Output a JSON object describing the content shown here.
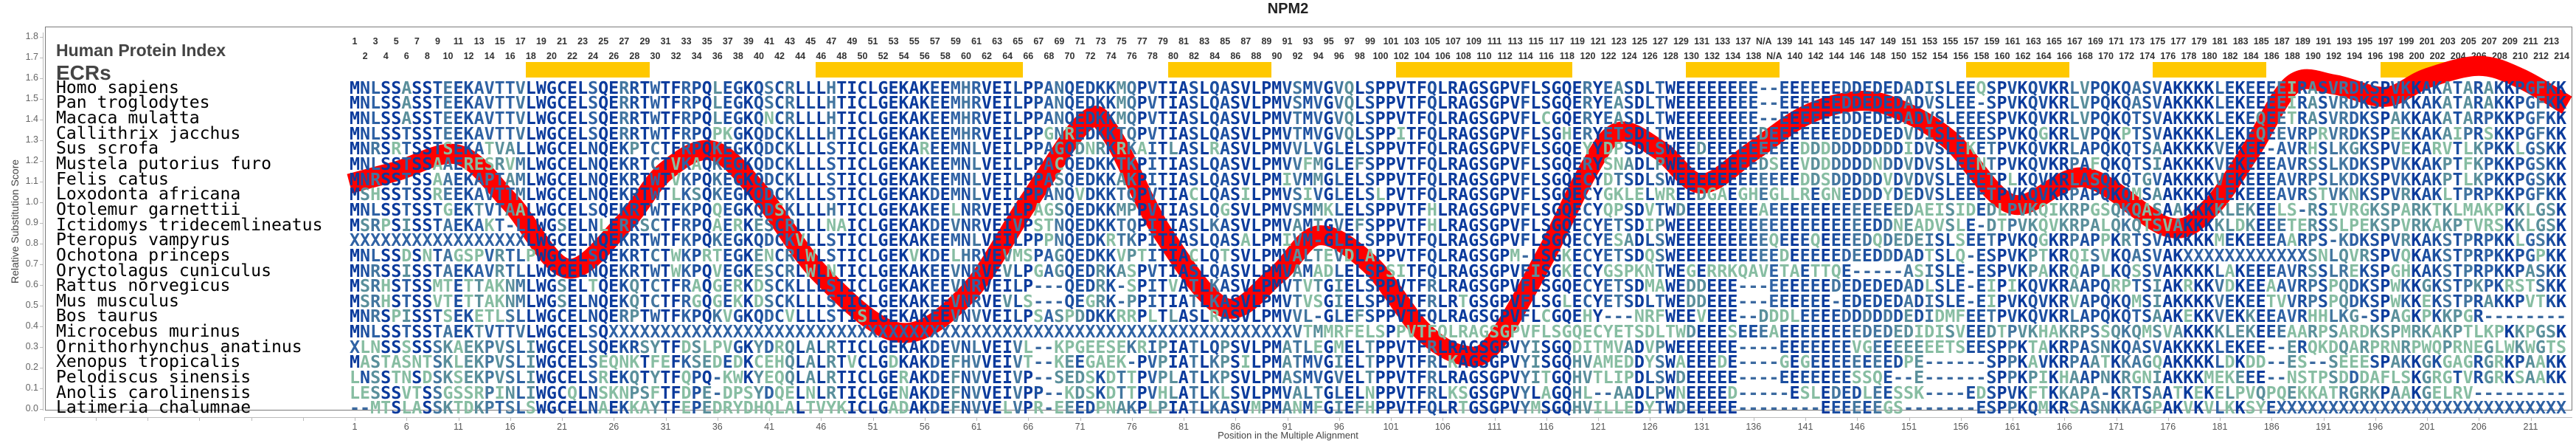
{
  "title": "NPM2",
  "header": {
    "index_title": "Human Protein Index",
    "ecr_title": "ECRs",
    "ecr_color": "#FFC800",
    "ecr_ranges": [
      [
        18,
        29
      ],
      [
        46,
        65
      ],
      [
        80,
        89
      ],
      [
        102,
        118
      ],
      [
        130,
        138
      ],
      [
        157,
        166
      ],
      [
        175,
        185
      ],
      [
        197,
        203
      ]
    ],
    "index_labels": [
      "1",
      "2",
      "3",
      "4",
      "5",
      "6",
      "7",
      "8",
      "9",
      "10",
      "11",
      "12",
      "13",
      "14",
      "15",
      "16",
      "17",
      "18",
      "19",
      "20",
      "21",
      "22",
      "23",
      "24",
      "25",
      "26",
      "27",
      "28",
      "29",
      "30",
      "31",
      "32",
      "33",
      "34",
      "35",
      "36",
      "37",
      "38",
      "39",
      "40",
      "41",
      "42",
      "43",
      "44",
      "45",
      "46",
      "47",
      "48",
      "49",
      "50",
      "51",
      "52",
      "53",
      "54",
      "55",
      "56",
      "57",
      "58",
      "59",
      "60",
      "61",
      "62",
      "63",
      "64",
      "65",
      "66",
      "67",
      "68",
      "69",
      "70",
      "71",
      "72",
      "73",
      "74",
      "75",
      "76",
      "77",
      "78",
      "79",
      "80",
      "81",
      "82",
      "83",
      "84",
      "85",
      "86",
      "87",
      "88",
      "89",
      "90",
      "91",
      "92",
      "93",
      "94",
      "95",
      "96",
      "97",
      "98",
      "99",
      "100",
      "101",
      "102",
      "103",
      "104",
      "105",
      "106",
      "107",
      "108",
      "109",
      "110",
      "111",
      "112",
      "113",
      "114",
      "115",
      "116",
      "117",
      "118",
      "119",
      "120",
      "121",
      "122",
      "123",
      "124",
      "125",
      "126",
      "127",
      "128",
      "129",
      "130",
      "131",
      "132",
      "133",
      "134",
      "137",
      "138",
      "N/A",
      "N/A",
      "139",
      "140",
      "141",
      "142",
      "143",
      "144",
      "145",
      "146",
      "147",
      "148",
      "149",
      "150",
      "151",
      "152",
      "153",
      "154",
      "155",
      "156",
      "157",
      "158",
      "159",
      "160",
      "161",
      "162",
      "163",
      "164",
      "165",
      "166",
      "167",
      "168",
      "169",
      "170",
      "171",
      "172",
      "173",
      "174",
      "175",
      "176",
      "177",
      "178",
      "179",
      "180",
      "181",
      "182",
      "183",
      "184",
      "185",
      "186",
      "187",
      "188",
      "189",
      "190",
      "191",
      "192",
      "193",
      "194",
      "195",
      "196",
      "197",
      "198",
      "199",
      "200",
      "201",
      "202",
      "203",
      "204",
      "205",
      "206",
      "207",
      "208",
      "209",
      "210",
      "211",
      "212",
      "213",
      "214"
    ]
  },
  "alignment": {
    "species": [
      "Homo sapiens",
      "Pan troglodytes",
      "Macaca mulatta",
      "Callithrix jacchus",
      "Sus scrofa",
      "Mustela putorius furo",
      "Felis catus",
      "Loxodonta africana",
      "Otolemur garnettii",
      "Ictidomys tridecemlineatus",
      "Pteropus vampyrus",
      "Ochotona princeps",
      "Oryctolagus cuniculus",
      "Rattus norvegicus",
      "Mus musculus",
      "Bos taurus",
      "Microcebus murinus",
      "Ornithorhynchus anatinus",
      "Xenopus tropicalis",
      "Pelodiscus sinensis",
      "Anolis carolinensis",
      "Latimeria chalumnae"
    ],
    "sequences": [
      "MNLSSASSTEEKAVTTVLWGCELSQERRTWTFRPQLEGKQSCRLLLHTICLGEKAKEEMHRVEILPPANQEDKKMQPVTIASLQASVLPMVSMVGVQLSPPVTFQLRAGSGPVFLSGQERYEASDLTWEEEEEEEE--EEEEEEDDEDEDADISLEEQSPVKQVKRLVPQKQASVAKKKKLEKEEEEIRASVRDKSPVKKAKATARAKKPGFKK",
      "MNLSSASSTEEKAVTTVLWGCELSQERRTWTFRPQLEGKQSCRLLLHTICLGEKAKEEMHRVEILPPANQEDKKMQPVTIASLQASVLPMVSMVGVQLSPPVTFQLRAGSGPVFLSGQERYEASDLTWEEEEEEEE--EEEEEEDDEDEDADVSLEE-SPVKQVKRLVPQKQASVAKKKKLEKEEEEIRASVRDKSPVKKAKATARAKKPGFKK",
      "MNLSSASSTEEKAVTTVLWGCELSQERRTWTFRPQLEGKQNCRLLLHTICLGEKAKEEMHRVEILPPANQEDKKMQPVTIASLQASVLPMVTMVGVQLSPPVTFQLRAGSGPVFLCGQERYEASDLTWEEEEEEEE--EEEEEEDDEDEDADVSLEEESPVKQVKRLVPQKQTSVAKKKKLEKEQEETRASVRDKSPAKKAKATARPKKPGFKK",
      "MNLSSTSSTEEKAVTTVLWGCELSQERRTWTFRPQPKGKQDCKLLLHTICLGEKAKEEMHRVEILPPGNREDKKTQPVTIASLQASVLPMVTMVGVQLSPPITFQLRAGSGPVFLSGHERYETSDLTWEEEEEEEEDEEEEEEEDDEDEDVDISLEEESPVKQGKRLVPQKPTSVAKKKKLEKEQEEVRPRVRDKSPEKKAKAIPRSKKPGFKK",
      "MNRSRTSSTSEKATVALLWGCELNQEKPTCTFRPQKEGKQDCKLLLSTICLGEKAREEMNLVEILPPAGQDNRKRKAITLASLRASVLPMVVLVGLELSPPVTFQLRAGSGPVFLSGQEYYDPSDLSWEEDEEEEEEEEEDDDDDDDDDDIDVSLEKETPVKQVKRLAPQKQTSAAKKKKVEKEE-AVRHSLKGKSPVEKARVTLKPKKLGSKK",
      "MNLSSTSSAAERESRVMLWGCELNQEKRTCTVKAQKEGKQDCKLLLSTICLGEKAKEEMNLVEILPPACQEDKKTKPITIASLQASVLPMVVFMGLEFSPPVTFQLRAGSGPVFLSGQERYSNADLPWEEEEEEEEDSEEVDDDDDDNDDVDVSLEENTPVKQVKRPAFQKQTSIAKKKKVEKEEEAVRSSLKDKSPVKKAKPTFKPKKPGSKK",
      "MNRSSTSSAAEKAPTAMLWGCELNQEKRTWTVKPQKEGKQDCKLLLSTICLGEKAKEEMNLVEILPPASQEDKKAKPITIASLQASVLPMIVMMGLELSPPVTFQLRAGSGPVFLSGQECYDTSDLSWEEEEEEEEEEEEDDSDDDDDVDVDVSLEEETPLKQVKRLASQKQTGVAKKKKVEKEEEAVRPSLKDKSPVKKAKPTLKPKKPGSKK",
      "MSHSSTSSREEKAVTTMLWGCELNQEKRTWTLKSQKEGKQDCKLLLSTICLGEKAKDEMNLVEILPPANQVDKKTQPVTIACLQASILPMVSIVGLELSLPVTFQLRAGSGPVFLSGQECYGKLELWREEDGAEGHEGLLREGNEDDDYDEDVSLEEETPVKQVKRPAPQKQMSAAKKKKLEKEEEAVRSTVKNKSPVRKAKLTPRPKKPGFKK",
      "MNLSSTSSTGEKTVTAALWGCELSQEKRTWTFKPQQEGKQDSKLLLHTICLGEKAKEELNRVEILPAGSQEDKKMPPVTIASLQGSVLPMVSMMKLELSPPVTFHLRAGSGPVFLSGQECYQPSDVTWDEEEEEEEAEEEEEEEEEEEEEDAEISIDEDLPVKQIKRPGSQKQASAAKKKKLEKEELS-RSIVRGKSPARKTKLMAKPKKLGSKK",
      "MSRPSISSTAEKAKT-LLWGSELNLERRSCTFRPQAERKESCRLLLNAICLGEKAKDEVNRVEIVPSTNQEDKKTQPITIASLKASVLPMVAMTGVEFSPPVTFHLRAGSGPVFLSGQECYETSDIPWEEEEEEEEEEEEEEEEEEEDDNEADVSLE-DTPVKQVKRPALQKQTSVAKKKKLDKEEETERSSLPEKSPVRKAKPTVRSKKLGSKK",
      "XXXXXXXXXXXXXXXXXLWGCELNQEKRTWTFKPQKEGKQDCKVLLSTICLGEKAKEEMNLVEILPPPNQEDKRTKPITIASLQASALPMIVM-GLELSPPVTFQLRAGSGPVFLSGQECYESADLSWEEEEEEEEEQEEEQEEEEDQDEDEISLSEETPVKQGKRPAPPKRTSVAKKKKMEKEEEAARPS-KDKSPVRKAKSTPRPKKLGSKK",
      "MNLSSDSNTAGSPVRTLPWGCELSQEKRTCTWKPRTEGKENCRLWLSTICLGEKVKDELHRVEVMSPAGQEDKKVPTITIACLQTSVLPMVALTEVDLAPPVTFQLRAGSGPM-LSGKECYETSDQSWEEEEEEEEEEDEEEEEDEEDDDADTSLQ-ESPVKPTKRQISVKQASVAKXXXXXXXXXXXXSNLQVRSPVQKAKSTPRPKKPGPKK",
      "MNRSSISSTAEKAVRTLLWGCELNQEKRTWTWKPQVEGKESCRLWLNTICLGEKAKEEVNRVEVLPGAGQEDRKASPVTIASLQASVLPMVAMADLELSPSITFQLRAGSGPVFISGKECYGSPKNTWEGERRKQAVETAETTQE-----ASISLE-ESPVKPAKRQAPLKQSSVAKKKKLAKEEEAVRSSLREKSPGHKAKSTPRPKKPASKK",
      "MSRHSTSSMTETTAKNMLWGSELTQEKQTCTFRAQGERKDSCKLLLSTICLGEKAKEEVNRVEILP---QEDRK-SPITVATLKASVLPMVTVTGIELSPPVTFRLRAGSGPVFLSGQECYETSDMAWEDDEEE---EEEEEEDEDEDEDADLSLE-EIPIKQVKRAAPQRPTSIAKRKKVDKEEAAVRPSPQDKSPWKKGKSTPKPKRSTSKK",
      "MSRHSTSSVTETTAKNMLWGSELNQEKQTCTFRGQGEKKDSCKLLLSTICLGEKAKEEVNRVEVLS---QEGRK-PPITIATLKASVLPMVTVSGIELSPPVTFRLRTGSGPVFLSGLECYETSDLTWEDDEEE---EEEEEE-EDEDEDADISLE-EIPVKQVKRVAPQKQMSIAKKKKVEKEETVVRPSPQDKSPWKKEKSTPRAKKPVTKK",
      "MNRSPISSTSEKETLSLLWGCELNQERPTWTFKPQKVGKQDCVLLLSTISLGEKAKEEVNVVEILPSASPDDKKRRPLTLASLRASVLPMVVL-GLEFSPPVTFQLRAGSGPVFLCGQEHY---NRFWEEVEEE--DDDLEEEEDDDDDDEDIDMFEETPVKQVKRLAPQKQTSAAKEKKVEKKEEAVRHHLKG-SPAGKPKKPGR--------",
      "MNLSSTSSTAEKTVTTVLWGCELSQXXXXXXXXXXXXXXXXXXXXXXXXXXXXXXXXXXXXXXXXXXXXXXXXXXXXXXXXXXXXXXXXXXVTMMRFELSPPVTFQLRAGSGPVFLSGQECYETSDLTWDEEESEEEAEEEEEEEEDEDEDIDISVEEDTPVKHAKRPSSQKQMSVAKKKKLEKEEEAARPSARDKSPMRKAKPTLKPKKPGSKK",
      "XLNSSSSSSKAEKPVSLIWGCELSQEKRSYTFDSLPVGKYDRQLALRTICLGEKAKDEVNLVEIVL--KPGEESEKRIPIATLQPSVLPMATLEGMELTPPVTFRLRAGSGPVYISGQDITMVADVPWEEEEEE----EEEEEEEVGEEEEEEETSEESPPKTAKRPASNKQASVAKKKKLEKEE--ERQKDQARPRNRPWQPRNEGLWKWGTS",
      "MASTASNTSKLEKPVSLIWGCELSEQNKTFEFKSEDEDKCEHQLALRTVCLGDKAKDEFHVVEIVT--KEEGAEK-PVPIATLKPSILPMATMVGIELTPPVTFRLKAGSGPVYISGQHVAMEDDYSWAEEEDE----GEGEEEEEEEEDPE------SPPKAVKRPAATKKAGQAKKKKLDKDD--ES--SEEESPAKKGKGAGRGRKPAAKK",
      "LNSSTNSDSKSEKPVSLIWGCELSREKQTYTFQPQ-KWKYEQQLALRTICLGERAKDEFNVVEIVP--SEDSKDTTPVPLATLKPSVLPMASMVGVELTPPVTFRLRAGSGPVYITGQHVTLIPDLSWDEEEEE----EEEEEEESSQE--E------SPPKPIKHAAPNKRGNIAKKKMEKEEE--NSTPSDDDAFLSKGRGTVRGRKSAAKK",
      "LESSSVTSSGSSRPINLIWGCQLNSKNPSFTFDPE-DPSYDQELNLRTICLGENAKDEFNVVEIVPP--KDSKDTTPVHLATLKLSVLPMVALTGLELNPPVTFRLKSGSGPVYLAGQHL--AADLPWNEEEED-----ESLEDEDLEESSK----EDSPVKFTKKAPA-KRTSAATKEKELPVQPQEKKATRGRKPAAKGELRV---------",
      "--MTSLASSKTDKPTSLSWGCELNAEKKAYTFEPEDRYDHQLALTVYKICLGADAKDEFNVVELVPR-EEEDPNAKPLPIATLKASVMPMANMFGIEFHPPVTFQLRTGSGPVYMSGQHVILLEDYTWDEEEEE--------EEEEEEGS-------ESPPKQMKRSASNKKAGPAKVKVLKKSYEXXXXXXXXXXXXXXXXXXXXXXXXXXXX"
    ]
  },
  "chart_data": {
    "type": "line",
    "title": "NPM2",
    "xlabel": "Position in the Multiple Alignment",
    "ylabel": "Relative Substitution Score",
    "ylim": [
      0,
      1.8
    ],
    "yticks": [
      "0.0",
      "0.1",
      "0.2",
      "0.3",
      "0.4",
      "0.5",
      "0.6",
      "0.7",
      "0.8",
      "0.9",
      "1.0",
      "1.1",
      "1.2",
      "1.3",
      "1.4",
      "1.5",
      "1.6",
      "1.7",
      "1.8"
    ],
    "xticks": [
      "1",
      "6",
      "11",
      "16",
      "21",
      "26",
      "31",
      "36",
      "41",
      "46",
      "51",
      "56",
      "61",
      "66",
      "71",
      "76",
      "81",
      "86",
      "91",
      "96",
      "101",
      "106",
      "111",
      "116",
      "121",
      "126",
      "131",
      "136",
      "141",
      "146",
      "151",
      "156",
      "161",
      "166",
      "171",
      "176",
      "181",
      "186",
      "191",
      "196",
      "201",
      "206",
      "211"
    ],
    "grid": false,
    "series": [
      {
        "name": "Relative Substitution Score",
        "color": "#FF0000",
        "x": [
          0.5,
          5,
          11,
          16,
          21.5,
          27,
          31,
          35.5,
          40,
          46,
          53.5,
          60,
          66,
          71.5,
          74,
          79,
          85,
          90,
          94,
          99,
          104,
          108,
          111,
          116,
          120,
          123,
          127,
          131,
          136,
          141,
          146,
          150,
          155,
          161,
          168,
          176,
          180,
          184,
          188,
          192,
          197,
          201,
          206,
          210,
          214.5
        ],
        "y": [
          1.09,
          1.15,
          1.23,
          1.0,
          0.68,
          0.9,
          1.15,
          1.25,
          1.05,
          0.65,
          0.37,
          0.55,
          1.0,
          1.39,
          1.33,
          0.85,
          0.49,
          0.65,
          0.84,
          0.7,
          0.38,
          0.26,
          0.32,
          0.75,
          1.15,
          1.34,
          1.25,
          1.09,
          1.25,
          1.42,
          1.49,
          1.45,
          1.3,
          0.99,
          1.12,
          0.88,
          0.97,
          1.25,
          1.57,
          1.57,
          1.51,
          1.6,
          1.66,
          1.6,
          1.47
        ]
      }
    ]
  }
}
